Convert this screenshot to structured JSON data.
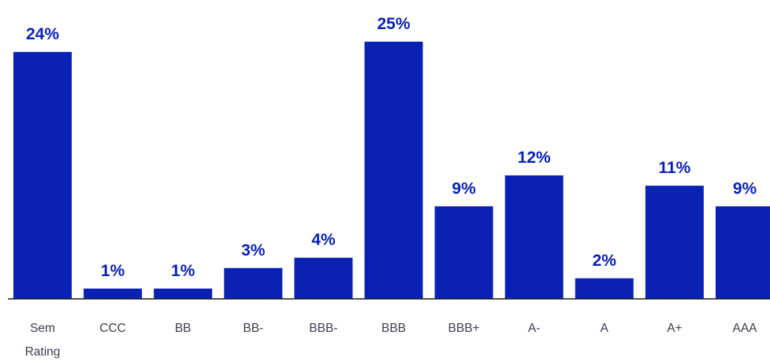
{
  "chart_data": {
    "type": "bar",
    "categories": [
      "Sem Rating",
      "CCC",
      "BB",
      "BB-",
      "BBB-",
      "BBB",
      "BBB+",
      "A-",
      "A",
      "A+",
      "AAA"
    ],
    "values": [
      24,
      1,
      1,
      3,
      4,
      25,
      9,
      12,
      2,
      11,
      9
    ],
    "data_labels": [
      "24%",
      "1%",
      "1%",
      "3%",
      "4%",
      "25%",
      "9%",
      "12%",
      "2%",
      "11%",
      "9%"
    ],
    "ylim": [
      0,
      25
    ],
    "grid": false,
    "legend": "none",
    "colors": {
      "bar": "#0a22b4",
      "label": "#0a22b4",
      "tick": "#3a3f4b",
      "axis": "#1a1a1a"
    }
  }
}
